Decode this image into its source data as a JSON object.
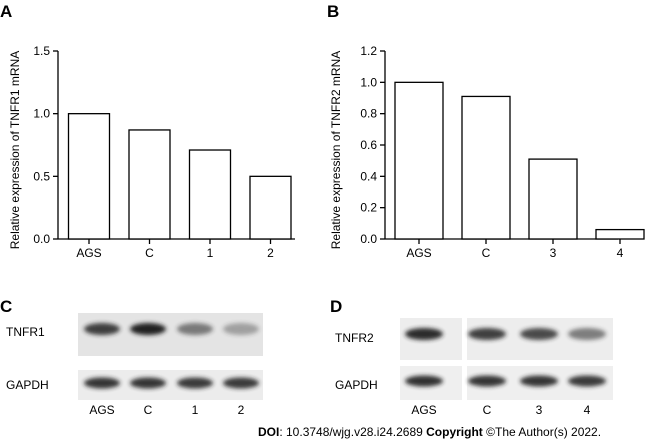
{
  "panels": {
    "a": "A",
    "b": "B",
    "c": "C",
    "d": "D"
  },
  "chart_data": [
    {
      "type": "bar",
      "panel": "A",
      "categories": [
        "AGS",
        "C",
        "1",
        "2"
      ],
      "values": [
        1.0,
        0.87,
        0.71,
        0.5
      ],
      "ylabel": "Relative expression of TNFR1 mRNA",
      "ylim": [
        0,
        1.5
      ],
      "yticks": [
        "0.0",
        "0.5",
        "1.0",
        "1.5"
      ],
      "ytick_values": [
        0,
        0.5,
        1.0,
        1.5
      ]
    },
    {
      "type": "bar",
      "panel": "B",
      "categories": [
        "AGS",
        "C",
        "3",
        "4"
      ],
      "values": [
        1.0,
        0.91,
        0.51,
        0.06
      ],
      "ylabel": "Relative expression of TNFR2 mRNA",
      "ylim": [
        0,
        1.2
      ],
      "yticks": [
        "0.0",
        "0.2",
        "0.4",
        "0.6",
        "0.8",
        "1.0",
        "1.2"
      ],
      "ytick_values": [
        0,
        0.2,
        0.4,
        0.6,
        0.8,
        1.0,
        1.2
      ]
    }
  ],
  "blot_c": {
    "row1_label": "TNFR1",
    "row2_label": "GAPDH",
    "lanes": [
      "AGS",
      "C",
      "1",
      "2"
    ],
    "row1_intensity": [
      0.85,
      1.0,
      0.55,
      0.35
    ],
    "row2_intensity": [
      0.9,
      0.9,
      0.88,
      0.88
    ]
  },
  "blot_d": {
    "row1_label": "TNFR2",
    "row2_label": "GAPDH",
    "lanes": [
      "AGS",
      "C",
      "3",
      "4"
    ],
    "row1_intensity": [
      0.95,
      0.85,
      0.8,
      0.55
    ],
    "row2_intensity": [
      0.92,
      0.9,
      0.9,
      0.88
    ]
  },
  "footer": {
    "doi_label": "DOI",
    "doi_value": ": 10.3748/wjg.v28.i24.2689",
    "copyright_label": "Copyright",
    "copyright_value": " ©The Author(s) 2022."
  }
}
